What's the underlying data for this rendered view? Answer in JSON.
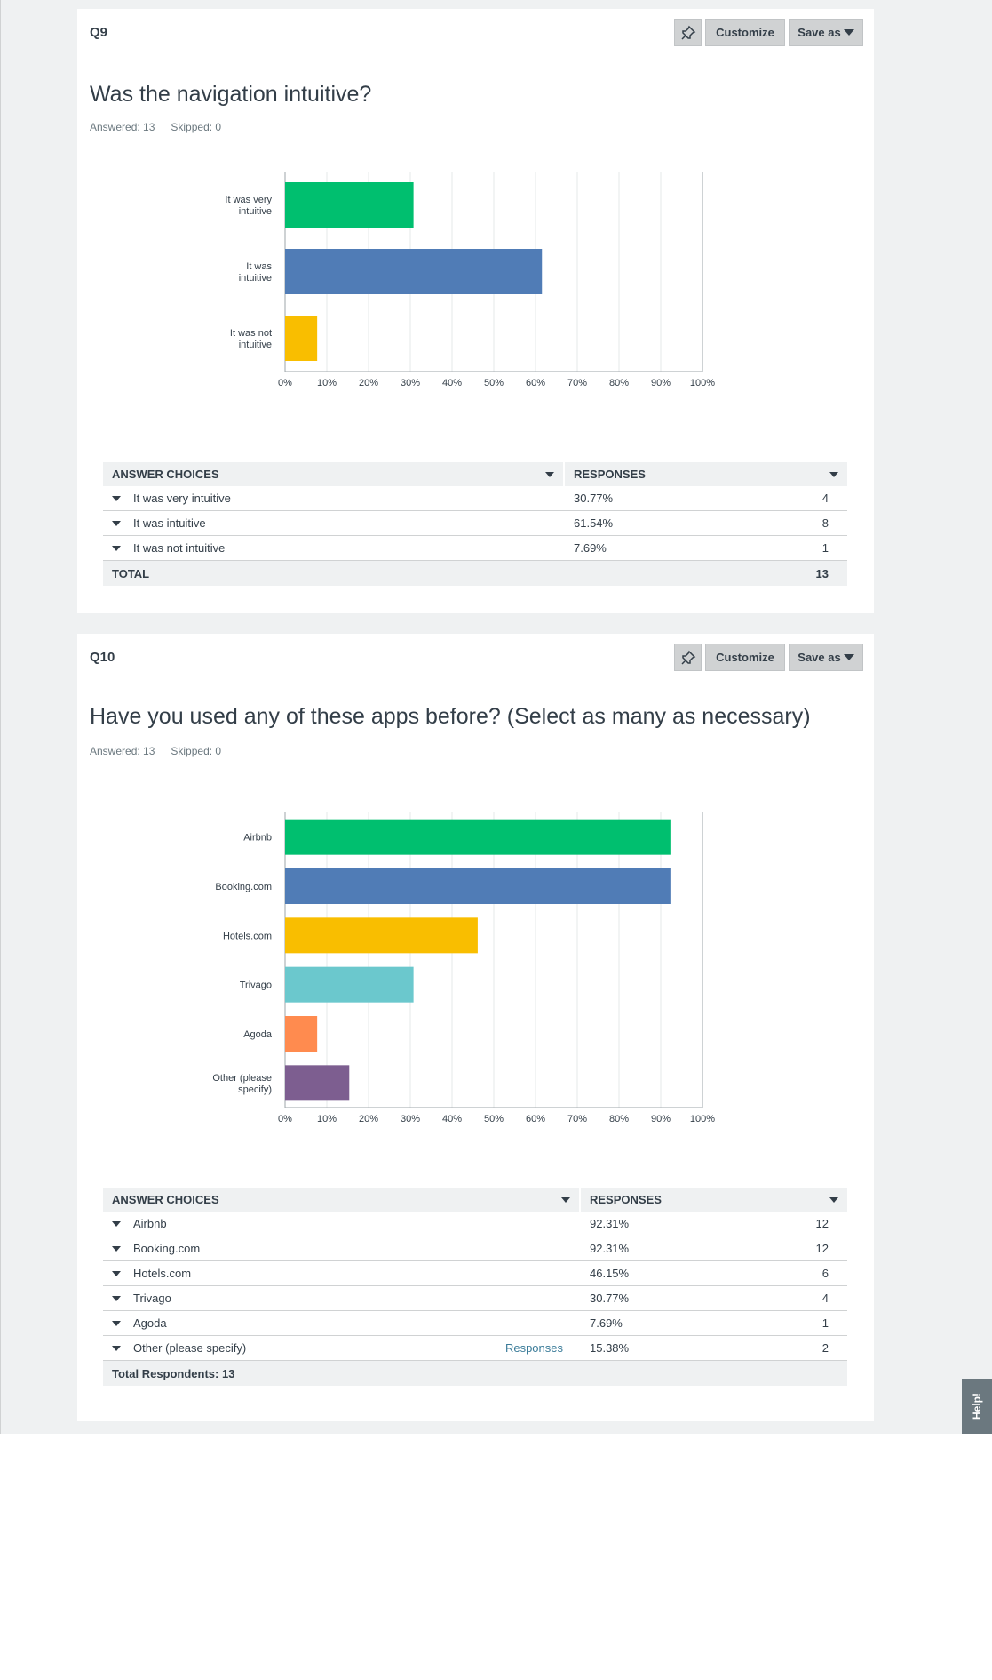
{
  "q9": {
    "number": "Q9",
    "title": "Was the navigation intuitive?",
    "answered": "Answered: 13",
    "skipped": "Skipped: 0",
    "toolbar": {
      "pin_icon": "pin-icon",
      "customize": "Customize",
      "save_as": "Save as"
    },
    "table": {
      "col_choice": "ANSWER CHOICES",
      "col_responses": "RESPONSES",
      "rows": [
        {
          "choice": "It was very intuitive",
          "pct": "30.77%",
          "count": "4"
        },
        {
          "choice": "It was intuitive",
          "pct": "61.54%",
          "count": "8"
        },
        {
          "choice": "It was not intuitive",
          "pct": "7.69%",
          "count": "1"
        }
      ],
      "footer_label": "TOTAL",
      "footer_value": "13"
    }
  },
  "q10": {
    "number": "Q10",
    "title": "Have you used any of these apps before? (Select as many as necessary)",
    "answered": "Answered: 13",
    "skipped": "Skipped: 0",
    "toolbar": {
      "pin_icon": "pin-icon",
      "customize": "Customize",
      "save_as": "Save as"
    },
    "table": {
      "col_choice": "ANSWER CHOICES",
      "col_responses": "RESPONSES",
      "rows": [
        {
          "choice": "Airbnb",
          "pct": "92.31%",
          "count": "12",
          "link": ""
        },
        {
          "choice": "Booking.com",
          "pct": "92.31%",
          "count": "12",
          "link": ""
        },
        {
          "choice": "Hotels.com",
          "pct": "46.15%",
          "count": "6",
          "link": ""
        },
        {
          "choice": "Trivago",
          "pct": "30.77%",
          "count": "4",
          "link": ""
        },
        {
          "choice": "Agoda",
          "pct": "7.69%",
          "count": "1",
          "link": ""
        },
        {
          "choice": "Other (please specify)",
          "pct": "15.38%",
          "count": "2",
          "link": "Responses"
        }
      ],
      "footer_label": "Total Respondents: 13"
    }
  },
  "help": {
    "label": "Help!"
  },
  "chart_data": [
    {
      "type": "bar",
      "orientation": "horizontal",
      "categories": [
        [
          "It was very",
          "intuitive"
        ],
        [
          "It was",
          "intuitive"
        ],
        [
          "It was not",
          "intuitive"
        ]
      ],
      "values": [
        30.77,
        61.54,
        7.69
      ],
      "colors": [
        "#00bf6f",
        "#507cb6",
        "#f9be00"
      ],
      "xlim": [
        0,
        100
      ],
      "xticks": [
        "0%",
        "10%",
        "20%",
        "30%",
        "40%",
        "50%",
        "60%",
        "70%",
        "80%",
        "90%",
        "100%"
      ],
      "grid": true
    },
    {
      "type": "bar",
      "orientation": "horizontal",
      "categories": [
        [
          "Airbnb"
        ],
        [
          "Booking.com"
        ],
        [
          "Hotels.com"
        ],
        [
          "Trivago"
        ],
        [
          "Agoda"
        ],
        [
          "Other (please",
          "specify)"
        ]
      ],
      "values": [
        92.31,
        92.31,
        46.15,
        30.77,
        7.69,
        15.38
      ],
      "colors": [
        "#00bf6f",
        "#507cb6",
        "#f9be00",
        "#6bc8cd",
        "#ff8b4f",
        "#7d5e90"
      ],
      "xlim": [
        0,
        100
      ],
      "xticks": [
        "0%",
        "10%",
        "20%",
        "30%",
        "40%",
        "50%",
        "60%",
        "70%",
        "80%",
        "90%",
        "100%"
      ],
      "grid": true
    }
  ]
}
